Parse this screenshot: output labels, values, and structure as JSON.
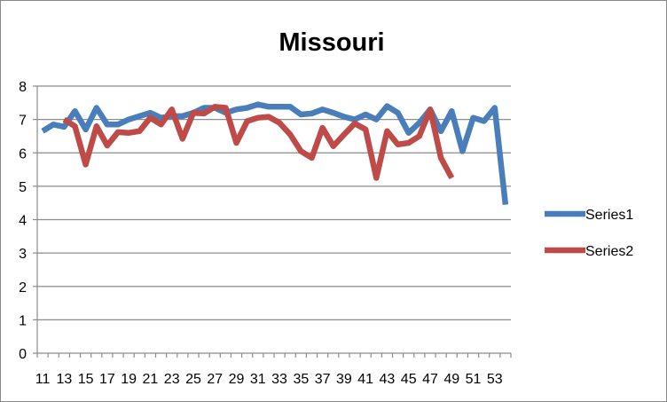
{
  "chart_data": {
    "type": "line",
    "title": "Missouri",
    "xlabel": "",
    "ylabel": "",
    "ylim": [
      0,
      8
    ],
    "y_ticks": [
      0,
      1,
      2,
      3,
      4,
      5,
      6,
      7,
      8
    ],
    "x": [
      11,
      12,
      13,
      14,
      15,
      16,
      17,
      18,
      19,
      20,
      21,
      22,
      23,
      24,
      25,
      26,
      27,
      28,
      29,
      30,
      31,
      32,
      33,
      34,
      35,
      36,
      37,
      38,
      39,
      40,
      41,
      42,
      43,
      44,
      45,
      46,
      47,
      48,
      49,
      50,
      51,
      52,
      53,
      54
    ],
    "x_tick_labels": [
      "11",
      "13",
      "15",
      "17",
      "19",
      "21",
      "23",
      "25",
      "27",
      "29",
      "31",
      "33",
      "35",
      "37",
      "39",
      "41",
      "43",
      "45",
      "47",
      "49",
      "51",
      "53"
    ],
    "grid": "horizontal",
    "legend_position": "right",
    "series": [
      {
        "name": "Series1",
        "color": "#4a7ebb",
        "values": [
          6.65,
          6.85,
          6.78,
          7.25,
          6.7,
          7.35,
          6.85,
          6.85,
          7.0,
          7.1,
          7.2,
          7.05,
          7.1,
          7.1,
          7.2,
          7.35,
          7.35,
          7.2,
          7.3,
          7.35,
          7.45,
          7.38,
          7.38,
          7.38,
          7.15,
          7.18,
          7.3,
          7.2,
          7.08,
          7.0,
          7.15,
          7.0,
          7.4,
          7.2,
          6.6,
          6.9,
          7.3,
          6.65,
          7.25,
          6.05,
          7.05,
          6.95,
          7.35,
          4.45
        ]
      },
      {
        "name": "Series2",
        "color": "#be4b48",
        "values": [
          null,
          null,
          7.0,
          6.8,
          5.65,
          6.8,
          6.22,
          6.62,
          6.6,
          6.65,
          7.05,
          6.85,
          7.3,
          6.42,
          7.2,
          7.18,
          7.38,
          7.35,
          6.3,
          6.95,
          7.05,
          7.08,
          6.9,
          6.55,
          6.05,
          5.85,
          6.75,
          6.2,
          6.55,
          6.88,
          6.7,
          5.25,
          6.65,
          6.25,
          6.3,
          6.5,
          7.3,
          5.85,
          5.25,
          null,
          null,
          null,
          null,
          null
        ]
      }
    ]
  }
}
